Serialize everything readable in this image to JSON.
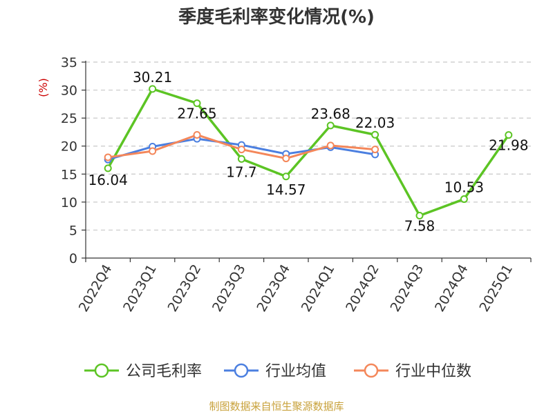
{
  "chart_data": {
    "type": "line",
    "title": "季度毛利率变化情况(%)",
    "ylabel": "(%)",
    "xlabel": "",
    "ylim": [
      0,
      35
    ],
    "yticks": [
      0,
      5,
      10,
      15,
      20,
      25,
      30,
      35
    ],
    "grid": true,
    "legend_position": "bottom",
    "categories": [
      "2022Q4",
      "2023Q1",
      "2023Q2",
      "2023Q3",
      "2023Q4",
      "2024Q1",
      "2024Q2",
      "2024Q3",
      "2024Q4",
      "2025Q1"
    ],
    "series": [
      {
        "name": "公司毛利率",
        "color": "#5cc424",
        "values": [
          16.04,
          30.21,
          27.65,
          17.7,
          14.57,
          23.68,
          22.03,
          7.58,
          10.53,
          21.98
        ],
        "labels": [
          "16.04",
          "30.21",
          "27.65",
          "17.7",
          "14.57",
          "23.68",
          "22.03",
          "7.58",
          "10.53",
          "21.98"
        ]
      },
      {
        "name": "行业均值",
        "color": "#4b7fe0",
        "values": [
          17.6,
          19.9,
          21.3,
          20.2,
          18.6,
          19.8,
          18.5,
          null,
          null,
          null
        ]
      },
      {
        "name": "行业中位数",
        "color": "#f4875a",
        "values": [
          18.0,
          19.1,
          22.0,
          19.4,
          17.8,
          20.1,
          19.4,
          null,
          null,
          null
        ]
      }
    ]
  },
  "footer": "制图数据来自恒生聚源数据库"
}
